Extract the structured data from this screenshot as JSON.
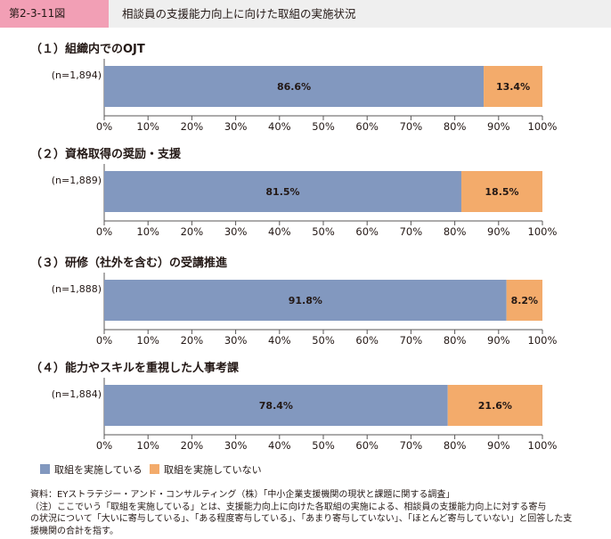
{
  "figure": {
    "id": "第2-3-11図",
    "title": "相談員の支援能力向上に向けた取組の実施状況"
  },
  "colors": {
    "implemented": "#8298bf",
    "not_implemented": "#f3ab6b"
  },
  "chart_data": [
    {
      "type": "bar",
      "title": "（１）組織内でのOJT",
      "categories": [
        "(n=1,894)"
      ],
      "series": [
        {
          "name": "取組を実施している",
          "values": [
            86.6
          ],
          "labels": [
            "86.6%"
          ]
        },
        {
          "name": "取組を実施していない",
          "values": [
            13.4
          ],
          "labels": [
            "13.4%"
          ]
        }
      ],
      "xlim": [
        0,
        100
      ],
      "xticks": [
        "0%",
        "10%",
        "20%",
        "30%",
        "40%",
        "50%",
        "60%",
        "70%",
        "80%",
        "90%",
        "100%"
      ],
      "stacked": true
    },
    {
      "type": "bar",
      "title": "（２）資格取得の奨励・支援",
      "categories": [
        "(n=1,889)"
      ],
      "series": [
        {
          "name": "取組を実施している",
          "values": [
            81.5
          ],
          "labels": [
            "81.5%"
          ]
        },
        {
          "name": "取組を実施していない",
          "values": [
            18.5
          ],
          "labels": [
            "18.5%"
          ]
        }
      ],
      "xlim": [
        0,
        100
      ],
      "xticks": [
        "0%",
        "10%",
        "20%",
        "30%",
        "40%",
        "50%",
        "60%",
        "70%",
        "80%",
        "90%",
        "100%"
      ],
      "stacked": true
    },
    {
      "type": "bar",
      "title": "（３）研修（社外を含む）の受講推進",
      "categories": [
        "(n=1,888)"
      ],
      "series": [
        {
          "name": "取組を実施している",
          "values": [
            91.8
          ],
          "labels": [
            "91.8%"
          ]
        },
        {
          "name": "取組を実施していない",
          "values": [
            8.2
          ],
          "labels": [
            "8.2%"
          ]
        }
      ],
      "xlim": [
        0,
        100
      ],
      "xticks": [
        "0%",
        "10%",
        "20%",
        "30%",
        "40%",
        "50%",
        "60%",
        "70%",
        "80%",
        "90%",
        "100%"
      ],
      "stacked": true
    },
    {
      "type": "bar",
      "title": "（４）能力やスキルを重視した人事考課",
      "categories": [
        "(n=1,884)"
      ],
      "series": [
        {
          "name": "取組を実施している",
          "values": [
            78.4
          ],
          "labels": [
            "78.4%"
          ]
        },
        {
          "name": "取組を実施していない",
          "values": [
            21.6
          ],
          "labels": [
            "21.6%"
          ]
        }
      ],
      "xlim": [
        0,
        100
      ],
      "xticks": [
        "0%",
        "10%",
        "20%",
        "30%",
        "40%",
        "50%",
        "60%",
        "70%",
        "80%",
        "90%",
        "100%"
      ],
      "stacked": true
    }
  ],
  "legend": {
    "implemented": "取組を実施している",
    "not_implemented": "取組を実施していない"
  },
  "notes": {
    "source": "資料：EYストラテジー・アンド・コンサルティング（株）「中小企業支援機関の現状と課題に関する調査」",
    "line1": "（注）ここでいう「取組を実施している」とは、支援能力向上に向けた各取組の実施による、相談員の支援能力向上に対する寄与",
    "line2": "の状況について「大いに寄与している」、「ある程度寄与している」、「あまり寄与していない」、「ほとんど寄与していない」と回答した支",
    "line3": "援機関の合計を指す。"
  }
}
